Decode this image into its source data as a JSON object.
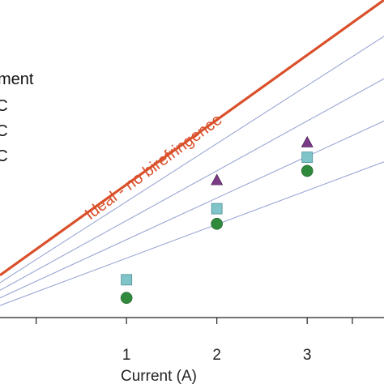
{
  "chart_data": {
    "type": "scatter",
    "xlabel": "Current (A)",
    "x_ticks": [
      "1",
      "2",
      "3"
    ],
    "xlim": [
      -0.4,
      3.85
    ],
    "ylim": [
      0,
      2.1
    ],
    "grid": false,
    "legend_placement": "top-left",
    "legend_entries": [
      "ment",
      "ºC",
      "ºC",
      "ºC"
    ],
    "annotation": "Ideal - no birefringence",
    "ideal_line": {
      "color": "#d9502a",
      "points": [
        [
          -0.4,
          0.28
        ],
        [
          3.85,
          2.1
        ]
      ]
    },
    "fit_lines": {
      "color": "#9aa6d4",
      "lines": [
        [
          [
            -0.4,
            0.23
          ],
          [
            3.85,
            1.86
          ]
        ],
        [
          [
            -0.4,
            0.18
          ],
          [
            3.85,
            1.58
          ]
        ],
        [
          [
            -0.4,
            0.13
          ],
          [
            3.85,
            1.3
          ]
        ],
        [
          [
            -0.4,
            0.08
          ],
          [
            3.85,
            1.03
          ]
        ]
      ]
    },
    "series": [
      {
        "marker": "triangle",
        "color": "#7a3a86",
        "x": [
          2,
          3
        ],
        "y": [
          0.91,
          1.16
        ]
      },
      {
        "marker": "square",
        "color": "#7fc4c9",
        "x": [
          1,
          2,
          3
        ],
        "y": [
          0.25,
          0.72,
          1.06
        ]
      },
      {
        "marker": "circle",
        "color": "#2f8a3c",
        "x": [
          1,
          2,
          3
        ],
        "y": [
          0.13,
          0.62,
          0.97
        ]
      }
    ]
  }
}
